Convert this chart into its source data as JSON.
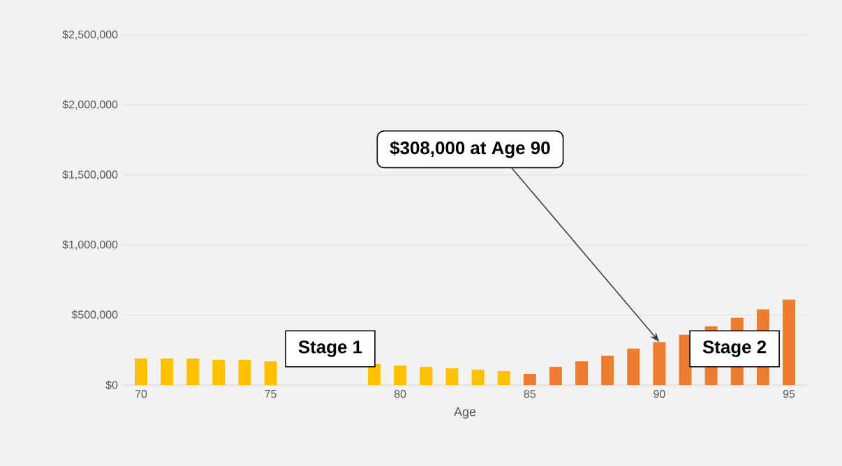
{
  "chart_data": {
    "type": "bar",
    "xlabel": "Age",
    "x": [
      70,
      71,
      72,
      73,
      74,
      75,
      76,
      77,
      78,
      79,
      80,
      81,
      82,
      83,
      84,
      85,
      86,
      87,
      88,
      89,
      90,
      91,
      92,
      93,
      94,
      95
    ],
    "values": [
      190000,
      190000,
      190000,
      180000,
      180000,
      170000,
      null,
      null,
      null,
      150000,
      140000,
      130000,
      120000,
      110000,
      100000,
      80000,
      130000,
      170000,
      210000,
      260000,
      308000,
      360000,
      420000,
      480000,
      540000,
      610000
    ],
    "colors": [
      "#ffc000",
      "#ffc000",
      "#ffc000",
      "#ffc000",
      "#ffc000",
      "#ffc000",
      "#ffc000",
      "#ffc000",
      "#ffc000",
      "#ffc000",
      "#ffc000",
      "#ffc000",
      "#ffc000",
      "#ffc000",
      "#ffc000",
      "#ed7d31",
      "#ed7d31",
      "#ed7d31",
      "#ed7d31",
      "#ed7d31",
      "#ed7d31",
      "#ed7d31",
      "#ed7d31",
      "#ed7d31",
      "#ed7d31",
      "#ed7d31"
    ],
    "xlim": [
      69.3,
      95.7
    ],
    "xticks": [
      70,
      75,
      80,
      85,
      90,
      95
    ],
    "ylim": [
      0,
      2500000
    ],
    "yticks": [
      {
        "value": 0,
        "label": "$0"
      },
      {
        "value": 500000,
        "label": "$500,000"
      },
      {
        "value": 1000000,
        "label": "$1,000,000"
      },
      {
        "value": 1500000,
        "label": "$1,500,000"
      },
      {
        "value": 2000000,
        "label": "$2,000,000"
      },
      {
        "value": 2500000,
        "label": "$2,500,000"
      }
    ],
    "grid": "y",
    "annotations": [
      {
        "text": "$308,000 at Age 90",
        "x": 90,
        "y": 308000
      },
      "Stage 1",
      "Stage 2"
    ]
  }
}
